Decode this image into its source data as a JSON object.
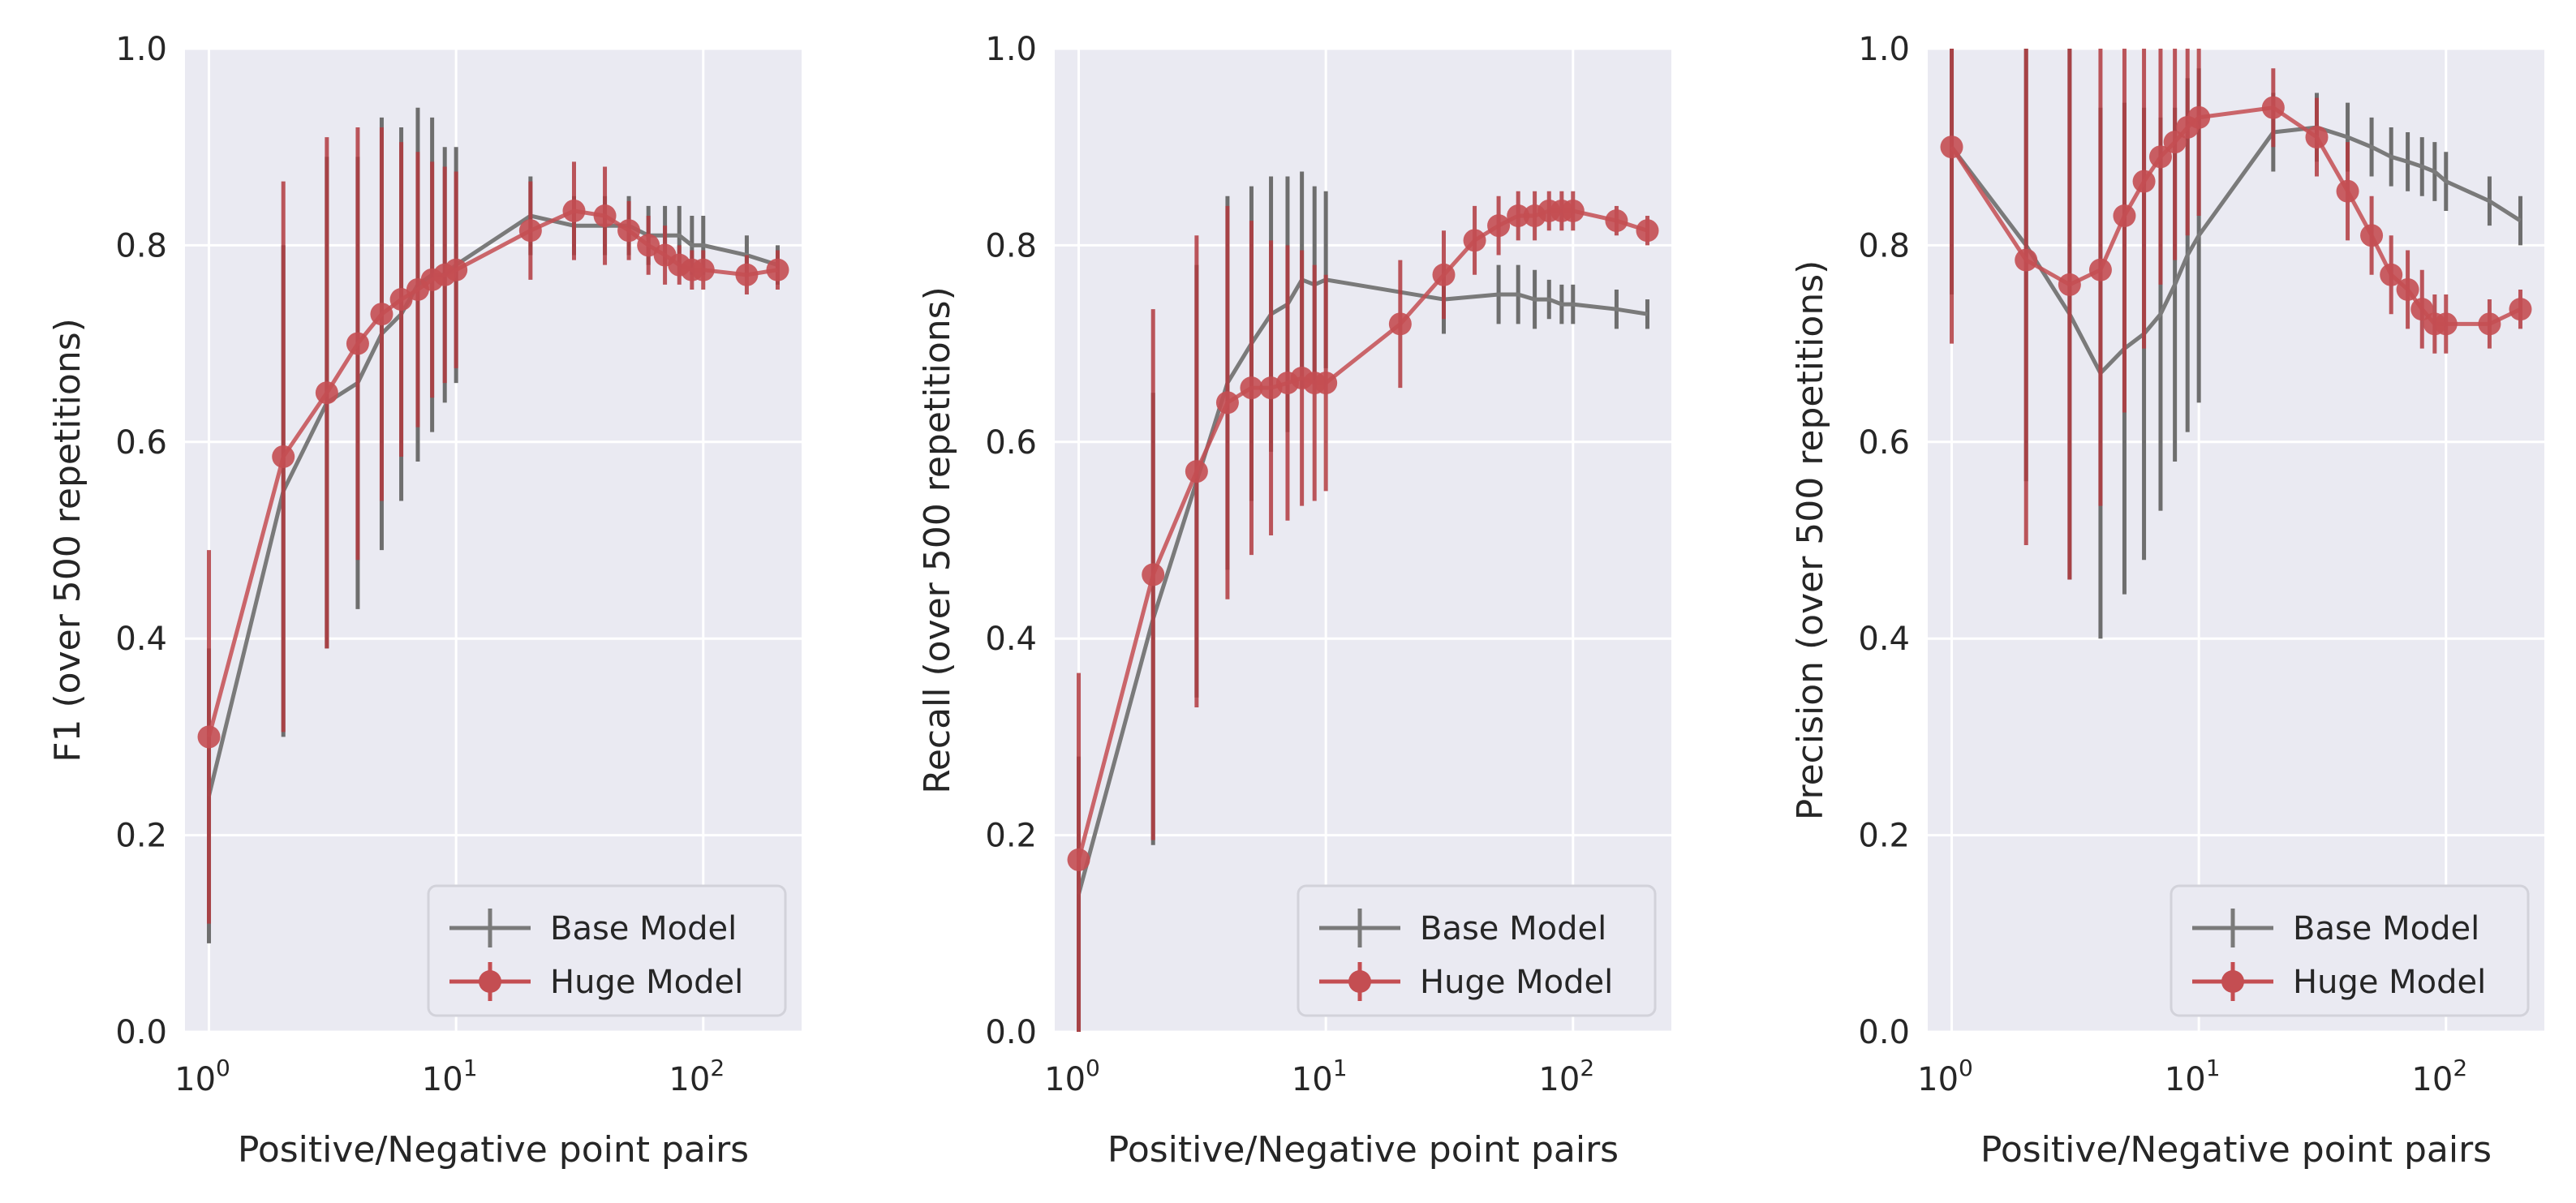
{
  "chart_data": [
    {
      "type": "line",
      "xscale": "log",
      "xlim": [
        0.8,
        250
      ],
      "ylim": [
        0.0,
        1.0
      ],
      "xlabel": "Positive/Negative point pairs",
      "ylabel": "F1 (over 500 repetitions)",
      "grid": true,
      "legend_position": "lower right",
      "yticks": [
        "0.0",
        "0.2",
        "0.4",
        "0.6",
        "0.8",
        "1.0"
      ],
      "xticks": [
        {
          "base": "10",
          "exp": "0"
        },
        {
          "base": "10",
          "exp": "1"
        },
        {
          "base": "10",
          "exp": "2"
        }
      ],
      "series": [
        {
          "name": "Base Model",
          "color": "#808080",
          "marker": "none",
          "x": [
            1,
            2,
            3,
            4,
            5,
            6,
            7,
            8,
            9,
            10,
            20,
            30,
            40,
            50,
            60,
            70,
            80,
            90,
            100,
            150,
            200
          ],
          "y": [
            0.24,
            0.55,
            0.64,
            0.66,
            0.71,
            0.73,
            0.76,
            0.77,
            0.77,
            0.78,
            0.83,
            0.82,
            0.82,
            0.82,
            0.81,
            0.81,
            0.81,
            0.8,
            0.8,
            0.79,
            0.78
          ],
          "err": [
            0.15,
            0.25,
            0.25,
            0.23,
            0.22,
            0.19,
            0.18,
            0.16,
            0.13,
            0.12,
            0.04,
            0.03,
            0.03,
            0.03,
            0.03,
            0.03,
            0.03,
            0.03,
            0.03,
            0.02,
            0.02
          ]
        },
        {
          "name": "Huge Model",
          "color": "#c44e52",
          "marker": "circle",
          "x": [
            1,
            2,
            3,
            4,
            5,
            6,
            7,
            8,
            9,
            10,
            20,
            30,
            40,
            50,
            60,
            70,
            80,
            90,
            100,
            150,
            200
          ],
          "y": [
            0.3,
            0.585,
            0.65,
            0.7,
            0.73,
            0.745,
            0.755,
            0.765,
            0.77,
            0.775,
            0.815,
            0.835,
            0.83,
            0.815,
            0.8,
            0.79,
            0.78,
            0.775,
            0.775,
            0.77,
            0.775
          ],
          "err": [
            0.19,
            0.28,
            0.26,
            0.22,
            0.19,
            0.16,
            0.14,
            0.12,
            0.11,
            0.1,
            0.05,
            0.05,
            0.05,
            0.03,
            0.03,
            0.03,
            0.02,
            0.02,
            0.02,
            0.02,
            0.02
          ]
        }
      ]
    },
    {
      "type": "line",
      "xscale": "log",
      "xlim": [
        0.8,
        250
      ],
      "ylim": [
        0.0,
        1.0
      ],
      "xlabel": "Positive/Negative point pairs",
      "ylabel": "Recall (over 500 repetitions)",
      "grid": true,
      "legend_position": "lower right",
      "yticks": [
        "0.0",
        "0.2",
        "0.4",
        "0.6",
        "0.8",
        "1.0"
      ],
      "xticks": [
        {
          "base": "10",
          "exp": "0"
        },
        {
          "base": "10",
          "exp": "1"
        },
        {
          "base": "10",
          "exp": "2"
        }
      ],
      "series": [
        {
          "name": "Base Model",
          "color": "#808080",
          "marker": "none",
          "x": [
            1,
            2,
            3,
            4,
            5,
            6,
            7,
            8,
            9,
            10,
            30,
            50,
            60,
            70,
            80,
            90,
            100,
            150,
            200
          ],
          "y": [
            0.14,
            0.42,
            0.56,
            0.66,
            0.7,
            0.73,
            0.74,
            0.765,
            0.76,
            0.765,
            0.745,
            0.75,
            0.75,
            0.745,
            0.745,
            0.74,
            0.74,
            0.735,
            0.73
          ],
          "err": [
            0.14,
            0.23,
            0.22,
            0.19,
            0.16,
            0.14,
            0.13,
            0.11,
            0.1,
            0.09,
            0.035,
            0.03,
            0.03,
            0.03,
            0.02,
            0.02,
            0.02,
            0.02,
            0.015
          ]
        },
        {
          "name": "Huge Model",
          "color": "#c44e52",
          "marker": "circle",
          "x": [
            1,
            2,
            3,
            4,
            5,
            6,
            7,
            8,
            9,
            10,
            20,
            30,
            40,
            50,
            60,
            70,
            80,
            90,
            100,
            150,
            200
          ],
          "y": [
            0.175,
            0.465,
            0.57,
            0.64,
            0.655,
            0.655,
            0.66,
            0.665,
            0.66,
            0.66,
            0.72,
            0.77,
            0.805,
            0.82,
            0.83,
            0.83,
            0.835,
            0.835,
            0.835,
            0.825,
            0.815
          ],
          "err": [
            0.19,
            0.27,
            0.24,
            0.2,
            0.17,
            0.15,
            0.14,
            0.13,
            0.12,
            0.11,
            0.065,
            0.045,
            0.035,
            0.03,
            0.025,
            0.025,
            0.02,
            0.02,
            0.02,
            0.015,
            0.015
          ]
        }
      ]
    },
    {
      "type": "line",
      "xscale": "log",
      "xlim": [
        0.8,
        250
      ],
      "ylim": [
        0.0,
        1.0
      ],
      "xlabel": "Positive/Negative point pairs",
      "ylabel": "Precision (over 500 repetitions)",
      "grid": true,
      "legend_position": "lower right",
      "yticks": [
        "0.0",
        "0.2",
        "0.4",
        "0.6",
        "0.8",
        "1.0"
      ],
      "xticks": [
        {
          "base": "10",
          "exp": "0"
        },
        {
          "base": "10",
          "exp": "1"
        },
        {
          "base": "10",
          "exp": "2"
        }
      ],
      "series": [
        {
          "name": "Base Model",
          "color": "#808080",
          "marker": "none",
          "x": [
            1,
            2,
            3,
            4,
            5,
            6,
            7,
            8,
            9,
            10,
            20,
            30,
            40,
            50,
            60,
            70,
            80,
            90,
            100,
            150,
            200
          ],
          "y": [
            0.9,
            0.8,
            0.73,
            0.67,
            0.695,
            0.71,
            0.73,
            0.76,
            0.79,
            0.81,
            0.915,
            0.92,
            0.91,
            0.9,
            0.89,
            0.885,
            0.88,
            0.875,
            0.865,
            0.845,
            0.825
          ],
          "err": [
            0.15,
            0.24,
            0.27,
            0.27,
            0.25,
            0.23,
            0.2,
            0.18,
            0.18,
            0.17,
            0.04,
            0.035,
            0.035,
            0.03,
            0.03,
            0.03,
            0.03,
            0.03,
            0.03,
            0.025,
            0.025
          ]
        },
        {
          "name": "Huge Model",
          "color": "#c44e52",
          "marker": "circle",
          "x": [
            1,
            2,
            3,
            4,
            5,
            6,
            7,
            8,
            9,
            10,
            20,
            30,
            40,
            50,
            60,
            70,
            80,
            90,
            100,
            150,
            200
          ],
          "y": [
            0.9,
            0.785,
            0.76,
            0.775,
            0.83,
            0.865,
            0.89,
            0.905,
            0.92,
            0.93,
            0.94,
            0.91,
            0.855,
            0.81,
            0.77,
            0.755,
            0.735,
            0.72,
            0.72,
            0.72,
            0.735
          ],
          "err": [
            0.2,
            0.29,
            0.3,
            0.24,
            0.2,
            0.17,
            0.13,
            0.12,
            0.11,
            0.1,
            0.04,
            0.04,
            0.05,
            0.04,
            0.04,
            0.04,
            0.04,
            0.03,
            0.03,
            0.025,
            0.02
          ]
        }
      ]
    }
  ]
}
